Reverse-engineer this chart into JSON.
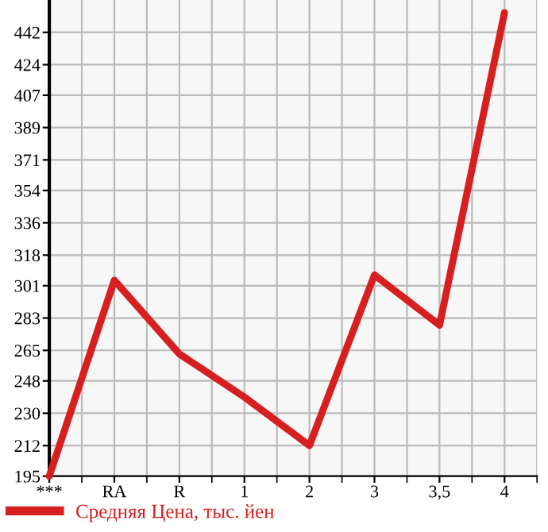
{
  "chart_data": {
    "type": "line",
    "categories": [
      "***",
      "RA",
      "R",
      "1",
      "2",
      "3",
      "3,5",
      "4"
    ],
    "series": [
      {
        "name": "Средняя Цена, тыс. йен",
        "color": "#d71f1f",
        "values": [
          195,
          304,
          263,
          239,
          212,
          307,
          279,
          453
        ]
      }
    ],
    "ylim": [
      195,
      460
    ],
    "yticks": [
      195,
      212,
      230,
      248,
      265,
      283,
      301,
      318,
      336,
      354,
      371,
      389,
      407,
      424,
      442
    ],
    "grid": true,
    "legend": "bottom left",
    "marker": "none",
    "line_style": "solid"
  }
}
